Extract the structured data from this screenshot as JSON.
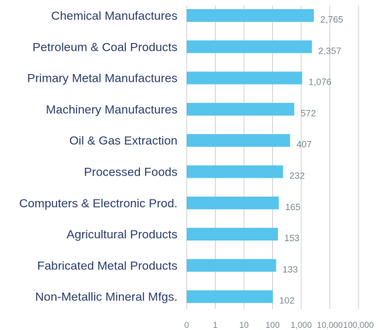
{
  "chart_data": {
    "type": "bar",
    "orientation": "horizontal",
    "title": "",
    "xlabel": "",
    "ylabel": "",
    "x_scale": "log",
    "xlim": [
      0.1,
      100000
    ],
    "grid": true,
    "legend": "none",
    "bar_color": "#56c4ec",
    "label_color": "#2b3d6b",
    "value_label_color": "#7a8a8f",
    "grid_color": "#c9cfd2",
    "categories": [
      "Chemical Manufactures",
      "Petroleum & Coal Products",
      "Primary Metal Manufactures",
      "Machinery Manufactures",
      "Oil & Gas Extraction",
      "Processed Foods",
      "Computers & Electronic Prod.",
      "Agricultural Products",
      "Fabricated Metal Products",
      "Non-Metallic Mineral Mfgs."
    ],
    "values": [
      2765,
      2357,
      1076,
      572,
      407,
      232,
      165,
      153,
      133,
      102
    ],
    "value_labels": [
      "2,765",
      "2,357",
      "1,076",
      "572",
      "407",
      "232",
      "165",
      "153",
      "133",
      "102"
    ],
    "x_ticks": [
      0.1,
      1,
      10,
      100,
      1000,
      10000,
      100000
    ],
    "x_tick_labels": [
      "0",
      "1",
      "10",
      "100",
      "1,000",
      "10,000",
      "100,000"
    ]
  }
}
